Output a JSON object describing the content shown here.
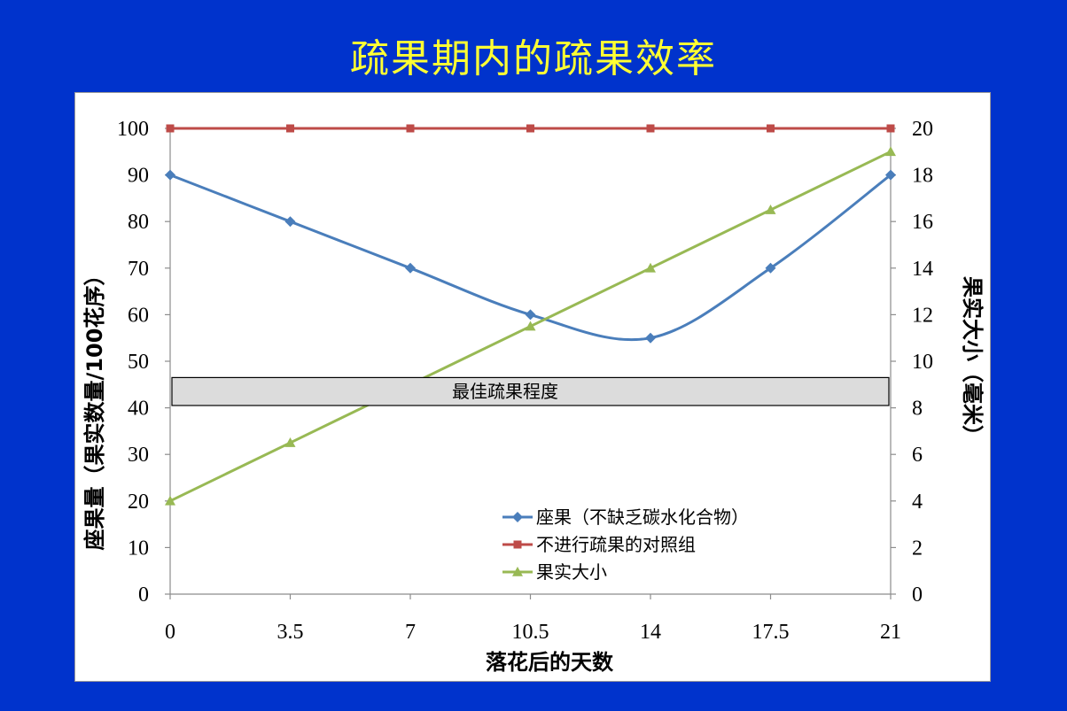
{
  "slide": {
    "title": "疏果期内的疏果效率"
  },
  "chart_data": {
    "type": "line",
    "xlabel": "落花后的天数",
    "ylabel_left": "座果量（果实数量/100花序）",
    "ylabel_right": "果实大小（毫米）",
    "x": [
      0,
      3.5,
      7,
      10.5,
      14,
      17.5,
      21
    ],
    "x_tick_labels": [
      "0",
      "3.5",
      "7",
      "10.5",
      "14",
      "17.5",
      "21"
    ],
    "ylim_left": [
      0,
      100
    ],
    "ylim_right": [
      0,
      20
    ],
    "y_left_ticks": [
      "0",
      "10",
      "20",
      "30",
      "40",
      "50",
      "60",
      "70",
      "80",
      "90",
      "100"
    ],
    "y_right_ticks": [
      "0",
      "2",
      "4",
      "6",
      "8",
      "10",
      "12",
      "14",
      "16",
      "18",
      "20"
    ],
    "grid": false,
    "legend_position": "bottom-center",
    "series": [
      {
        "name": "座果（不缺乏碳水化合物）",
        "axis": "left",
        "values": [
          90,
          80,
          70,
          60,
          55,
          70,
          90
        ],
        "color": "#4a7ebb",
        "marker": "diamond",
        "smooth": true
      },
      {
        "name": "不进行疏果的对照组",
        "axis": "left",
        "values": [
          100,
          100,
          100,
          100,
          100,
          100,
          100
        ],
        "color": "#be4b48",
        "marker": "square",
        "smooth": false
      },
      {
        "name": "果实大小",
        "axis": "right",
        "values": [
          4,
          6.5,
          9,
          11.5,
          14,
          16.5,
          19
        ],
        "color": "#98b954",
        "marker": "triangle",
        "smooth": false
      }
    ],
    "annotation": {
      "text": "最佳疏果程度",
      "y_range_left": [
        40.5,
        46.5
      ]
    }
  }
}
